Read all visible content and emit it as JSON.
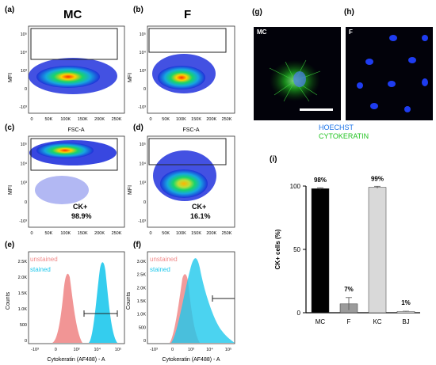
{
  "panels": {
    "a": "(a)",
    "b": "(b)",
    "c": "(c)",
    "d": "(d)",
    "e": "(e)",
    "f": "(f)",
    "g": "(g)",
    "h": "(h)",
    "i": "(i)"
  },
  "column_titles": {
    "mc": "MC",
    "f": "F"
  },
  "flow": {
    "y_axis_label": "MFI",
    "x_axis_label": "FSC-A",
    "x_ticks": [
      "0",
      "50K",
      "100K",
      "150K",
      "200K",
      "250K"
    ],
    "y_ticks": [
      "10⁵",
      "10⁴",
      "10³",
      "0",
      "-10³"
    ],
    "c_gate_label": "CK+",
    "c_gate_value": "98.9%",
    "d_gate_label": "CK+",
    "d_gate_value": "16.1%"
  },
  "histograms": {
    "x_axis_label": "Cytokeratin (AF488) - A",
    "y_axis_label": "Counts",
    "x_ticks": [
      "-10³",
      "0",
      "10³",
      "10⁴",
      "10⁵"
    ],
    "e_y_ticks": [
      "2.5K",
      "2.0K",
      "1.5K",
      "1.0K",
      "500",
      "0"
    ],
    "f_y_ticks": [
      "3.0K",
      "2.5K",
      "2.0K",
      "1.5K",
      "1.0K",
      "500",
      "0"
    ],
    "legend_unstained": "unstained",
    "legend_stained": "stained",
    "color_unstained": "#f08a8a",
    "color_stained": "#1ec8ec"
  },
  "micrographs": {
    "g_tag": "MC",
    "h_tag": "F",
    "legend_hoechst": "HOECHST",
    "legend_cytokeratin": "CYTOKERATIN",
    "color_hoechst": "#1a73e8",
    "color_cytokeratin": "#22c322"
  },
  "chart_data": {
    "type": "bar",
    "ylabel": "CK+ cells (%)",
    "xlabel": "",
    "categories": [
      "MC",
      "F",
      "KC",
      "BJ"
    ],
    "values": [
      98,
      7,
      99,
      1
    ],
    "errors": [
      0.7,
      5,
      0.8,
      0.2
    ],
    "value_labels": [
      "98%",
      "7%",
      "99%",
      "1%"
    ],
    "colors": [
      "#000000",
      "#9b9b9b",
      "#d9d9d9",
      "#ffffff"
    ],
    "ylim": [
      0,
      100
    ],
    "yticks": [
      "0",
      "50",
      "100"
    ],
    "grid": false
  }
}
